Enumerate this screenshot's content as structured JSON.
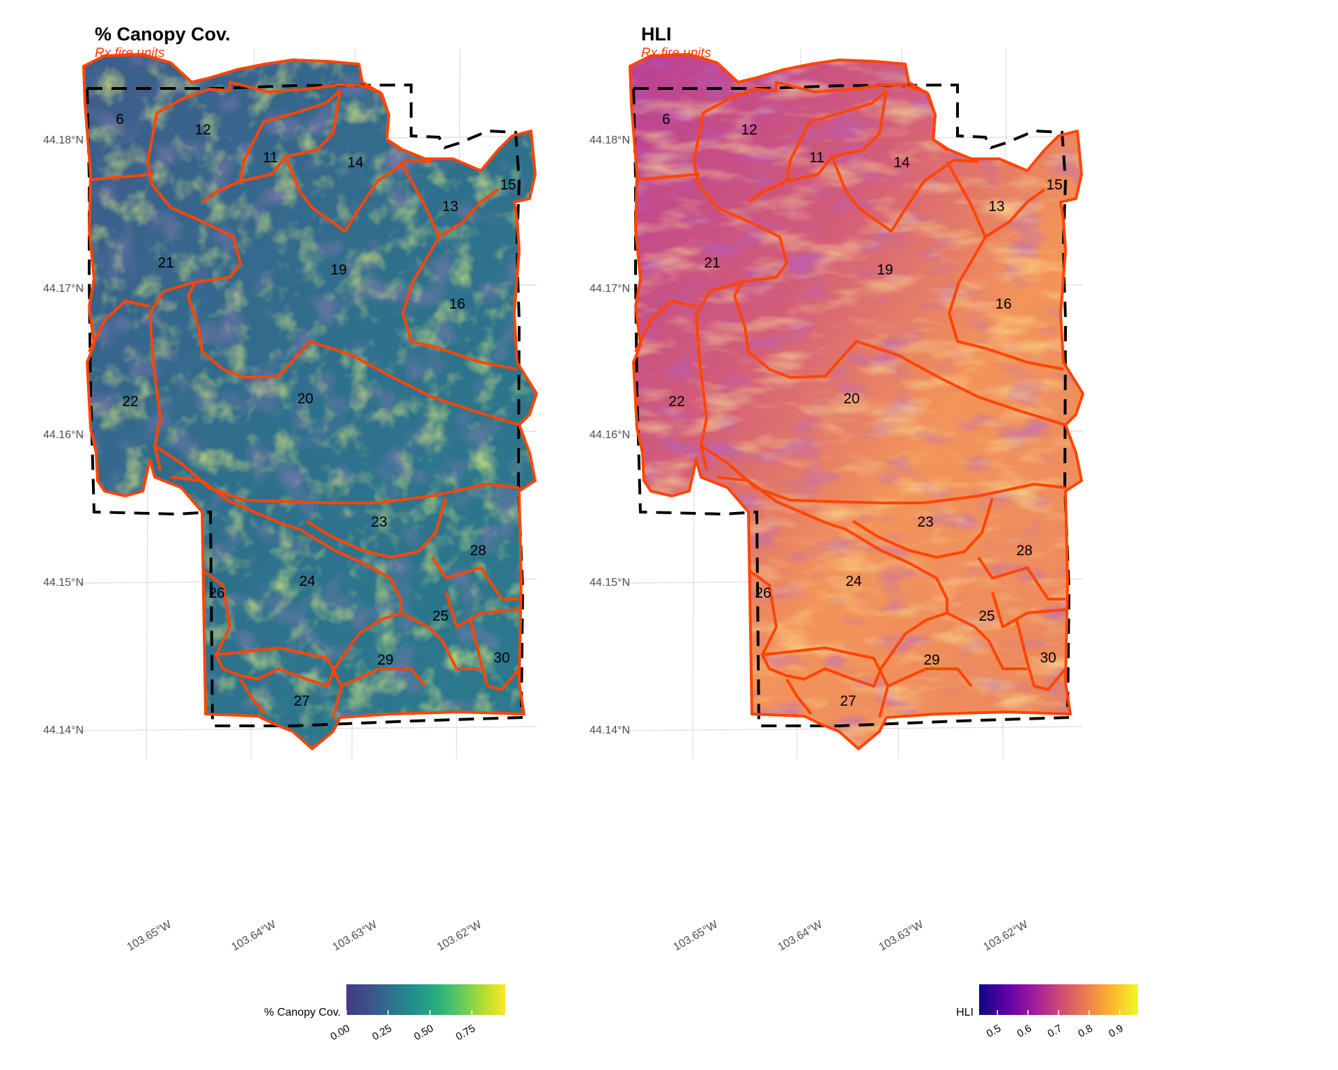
{
  "panels": [
    {
      "id": "canopy",
      "title": "% Canopy Cov.",
      "subtitle": "Rx fire units",
      "legend_title": "% Canopy Cov.",
      "legend_ticks": [
        "0.00",
        "0.25",
        "0.50",
        "0.75"
      ],
      "legend_range": [
        0.0,
        0.95
      ],
      "palette": "viridis",
      "legend_colors": [
        "#443a83",
        "#3b528b",
        "#2c728e",
        "#21918c",
        "#28ae80",
        "#5ec962",
        "#addc30",
        "#fde725"
      ]
    },
    {
      "id": "hli",
      "title": "HLI",
      "subtitle": "Rx fire units",
      "legend_title": "HLI",
      "legend_ticks": [
        "0.5",
        "0.6",
        "0.7",
        "0.8",
        "0.9"
      ],
      "legend_range": [
        0.44,
        0.96
      ],
      "palette": "plasma",
      "legend_colors": [
        "#0d0887",
        "#5c01a6",
        "#9c179e",
        "#cc4778",
        "#ed7953",
        "#fdb42f",
        "#f0f921"
      ]
    }
  ],
  "axes": {
    "lat_ticks": [
      "44.18°N",
      "44.17°N",
      "44.16°N",
      "44.15°N",
      "44.14°N"
    ],
    "lon_ticks": [
      "103.65°W",
      "103.64°W",
      "103.63°W",
      "103.62°W"
    ]
  },
  "unit_labels": [
    "6",
    "12",
    "11",
    "14",
    "15",
    "13",
    "21",
    "19",
    "16",
    "22",
    "20",
    "23",
    "28",
    "24",
    "26",
    "25",
    "29",
    "30",
    "27"
  ],
  "colors": {
    "unit_boundary": "#ff4500",
    "study_area_boundary": "#000000",
    "subtitle": "#ff3b00"
  }
}
